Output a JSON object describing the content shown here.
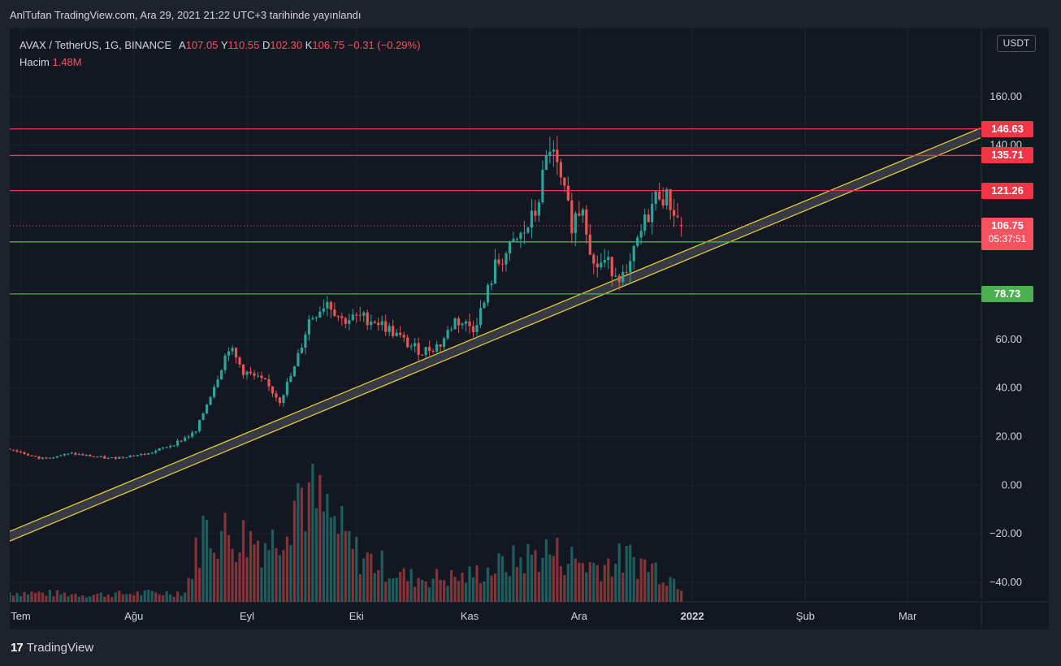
{
  "caption": "AnlTufan TradingView.com, Ara 29, 2021 21:22 UTC+3 tarihinde yayınlandı",
  "legend": {
    "title": "AVAX / TetherUS, 1G, BINANCE",
    "open_label": "A",
    "open": "107.05",
    "high_label": "Y",
    "high": "110.55",
    "low_label": "D",
    "low": "102.30",
    "close_label": "K",
    "close": "106.75",
    "change": "−0.31 (−0.29%)",
    "volume_label": "Hacim",
    "volume": "1.48M"
  },
  "currency": "USDT",
  "brand": "TradingView",
  "chart_data": {
    "type": "candlestick",
    "y_axis_ticks": [
      "160.00",
      "140.00",
      "60.00",
      "40.00",
      "20.00",
      "0.00",
      "−20.00",
      "−40.00"
    ],
    "y_axis_ticks_values": [
      160,
      140,
      60,
      40,
      20,
      0,
      -20,
      -40
    ],
    "ylim": [
      -48,
      188
    ],
    "x_axis_ticks": [
      "Tem",
      "Ağu",
      "Eyl",
      "Eki",
      "Kas",
      "Ara",
      "2022",
      "Şub",
      "Mar"
    ],
    "x_axis_ticks_dates": [
      "2021-07-01",
      "2021-08-01",
      "2021-09-01",
      "2021-10-01",
      "2021-11-01",
      "2021-12-01",
      "2022-01-01",
      "2022-02-01",
      "2022-03-01"
    ],
    "last_date": "2021-12-29",
    "horizontal_levels": [
      {
        "value": 146.63,
        "label": "146.63",
        "color": "#f23645"
      },
      {
        "value": 135.71,
        "label": "135.71",
        "color": "#f23645"
      },
      {
        "value": 121.26,
        "label": "121.26",
        "color": "#f23645"
      },
      {
        "value": 100.15,
        "label": "100.15",
        "color": "#4caf50"
      },
      {
        "value": 78.73,
        "label": "78.73",
        "color": "#4caf50"
      }
    ],
    "last_price": {
      "value": 106.75,
      "label": "106.75",
      "countdown": "05:37:51",
      "color": "#f7525f"
    },
    "channel": {
      "upper": {
        "start": [
          "2021-06-28",
          -19
        ],
        "end": [
          "2022-03-21",
          147
        ]
      },
      "lower": {
        "start": [
          "2021-06-28",
          -23
        ],
        "end": [
          "2022-03-21",
          143
        ]
      },
      "color": "#f0d630"
    },
    "price_path": [
      [
        "2021-06-28",
        15
      ],
      [
        "2021-07-06",
        11
      ],
      [
        "2021-07-15",
        13
      ],
      [
        "2021-07-25",
        11
      ],
      [
        "2021-08-05",
        13
      ],
      [
        "2021-08-12",
        17
      ],
      [
        "2021-08-18",
        22
      ],
      [
        "2021-08-24",
        45
      ],
      [
        "2021-08-27",
        57
      ],
      [
        "2021-08-31",
        47
      ],
      [
        "2021-09-06",
        42
      ],
      [
        "2021-09-10",
        35
      ],
      [
        "2021-09-14",
        48
      ],
      [
        "2021-09-18",
        68
      ],
      [
        "2021-09-23",
        76
      ],
      [
        "2021-09-27",
        68
      ],
      [
        "2021-10-02",
        69
      ],
      [
        "2021-10-06",
        68
      ],
      [
        "2021-10-11",
        63
      ],
      [
        "2021-10-15",
        58
      ],
      [
        "2021-10-19",
        55
      ],
      [
        "2021-10-24",
        58
      ],
      [
        "2021-10-28",
        68
      ],
      [
        "2021-11-02",
        65
      ],
      [
        "2021-11-05",
        75
      ],
      [
        "2021-11-08",
        90
      ],
      [
        "2021-11-12",
        97
      ],
      [
        "2021-11-16",
        104
      ],
      [
        "2021-11-19",
        112
      ],
      [
        "2021-11-23",
        140
      ],
      [
        "2021-11-26",
        124
      ],
      [
        "2021-11-29",
        108
      ],
      [
        "2021-12-02",
        116
      ],
      [
        "2021-12-05",
        90
      ],
      [
        "2021-12-08",
        92
      ],
      [
        "2021-12-11",
        88
      ],
      [
        "2021-12-14",
        85
      ],
      [
        "2021-12-17",
        100
      ],
      [
        "2021-12-20",
        112
      ],
      [
        "2021-12-23",
        121
      ],
      [
        "2021-12-26",
        116
      ],
      [
        "2021-12-29",
        106.75
      ]
    ],
    "volume_note": "relative bar heights, 0-1",
    "volume_path": [
      [
        "2021-06-28",
        0.08
      ],
      [
        "2021-07-20",
        0.06
      ],
      [
        "2021-08-15",
        0.08
      ],
      [
        "2021-08-20",
        0.6
      ],
      [
        "2021-08-28",
        0.55
      ],
      [
        "2021-09-08",
        0.5
      ],
      [
        "2021-09-15",
        0.95
      ],
      [
        "2021-09-22",
        0.75
      ],
      [
        "2021-10-01",
        0.4
      ],
      [
        "2021-10-15",
        0.2
      ],
      [
        "2021-10-30",
        0.2
      ],
      [
        "2021-11-10",
        0.3
      ],
      [
        "2021-11-22",
        0.42
      ],
      [
        "2021-12-05",
        0.3
      ],
      [
        "2021-12-15",
        0.36
      ],
      [
        "2021-12-22",
        0.28
      ],
      [
        "2021-12-29",
        0.15
      ]
    ]
  }
}
